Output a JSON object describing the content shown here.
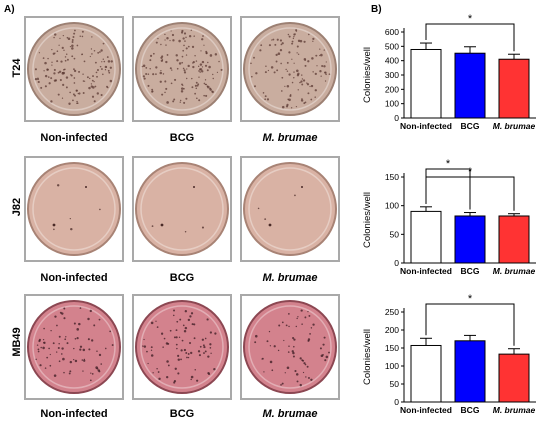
{
  "panels": {
    "a_label": "A)",
    "b_label": "B)"
  },
  "plates": [
    {
      "row_label": "T24",
      "background": "#c9ad9f",
      "rim": "#9c8073",
      "dot_color": "#5b3a33",
      "dot_density": [
        0.55,
        0.55,
        0.45
      ],
      "conditions": [
        "Non-infected",
        "BCG",
        "M. brumae"
      ]
    },
    {
      "row_label": "J82",
      "background": "#d9b2a4",
      "rim": "#a88375",
      "dot_color": "#4a2a27",
      "dot_density": [
        0.02,
        0.01,
        0.01
      ],
      "conditions": [
        "Non-infected",
        "BCG",
        "M. brumae"
      ]
    },
    {
      "row_label": "MB49",
      "background": "#d3828d",
      "rim": "#8c4752",
      "dot_color": "#3a1a22",
      "dot_density": [
        0.3,
        0.32,
        0.25
      ],
      "conditions": [
        "Non-infected",
        "BCG",
        "M. brumae"
      ]
    }
  ],
  "bar_colors": [
    "#ffffff",
    "#0000ff",
    "#ff3333"
  ],
  "chart_data": [
    {
      "type": "bar",
      "categories": [
        "Non-infected",
        "BCG",
        "M. brumae"
      ],
      "values": [
        478,
        452,
        410
      ],
      "errors": [
        45,
        45,
        35
      ],
      "ylabel": "Colonies/well",
      "ylim": [
        0,
        600
      ],
      "yticks": [
        "0",
        "100",
        "200",
        "300",
        "400",
        "500",
        "600"
      ],
      "significance": [
        {
          "from": 0,
          "to": 2,
          "label": "*"
        }
      ]
    },
    {
      "type": "bar",
      "categories": [
        "Non-infected",
        "BCG",
        "M. brumae"
      ],
      "values": [
        90,
        82,
        82
      ],
      "errors": [
        8,
        6,
        4
      ],
      "ylabel": "Colonies/well",
      "ylim": [
        0,
        150
      ],
      "yticks": [
        "0",
        "50",
        "100",
        "150"
      ],
      "significance": [
        {
          "from": 0,
          "to": 1,
          "label": "*"
        },
        {
          "from": 0,
          "to": 2,
          "label": "*"
        }
      ]
    },
    {
      "type": "bar",
      "categories": [
        "Non-infected",
        "BCG",
        "M. brumae"
      ],
      "values": [
        157,
        170,
        133
      ],
      "errors": [
        20,
        15,
        15
      ],
      "ylabel": "Colonies/well",
      "ylim": [
        0,
        250
      ],
      "yticks": [
        "0",
        "50",
        "100",
        "150",
        "200",
        "250"
      ],
      "significance": [
        {
          "from": 0,
          "to": 2,
          "label": "*"
        }
      ]
    }
  ]
}
